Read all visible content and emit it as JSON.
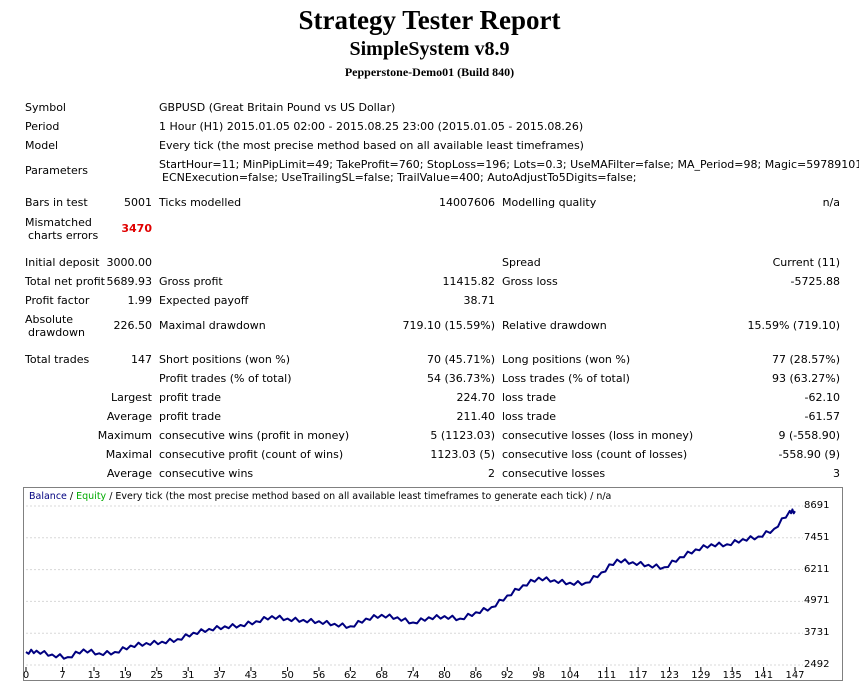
{
  "header": {
    "title": "Strategy Tester Report",
    "subtitle": "SimpleSystem v8.9",
    "broker": "Pepperstone-Demo01 (Build 840)"
  },
  "info": {
    "symbol_label": "Symbol",
    "symbol_value": "GBPUSD (Great Britain Pound vs US Dollar)",
    "period_label": "Period",
    "period_value": "1 Hour (H1) 2015.01.05 02:00 - 2015.08.25 23:00 (2015.01.05 - 2015.08.26)",
    "model_label": "Model",
    "model_value": "Every tick (the most precise method based on all available least timeframes)",
    "parameters_label": "Parameters",
    "parameters_line1": "StartHour=11; MinPipLimit=49; TakeProfit=760; StopLoss=196; Lots=0.3; UseMAFilter=false; MA_Period=98; Magic=59789101;",
    "parameters_line2": "ECNExecution=false; UseTrailingSL=false; TrailValue=400; AutoAdjustTo5Digits=false;"
  },
  "stats": {
    "bars_label": "Bars in test",
    "bars_value": "5001",
    "ticks_label": "Ticks modelled",
    "ticks_value": "14007606",
    "quality_label": "Modelling quality",
    "quality_value": "n/a",
    "mismatch_label1": "Mismatched",
    "mismatch_label2": "charts errors",
    "mismatch_value": "3470",
    "deposit_label": "Initial deposit",
    "deposit_value": "3000.00",
    "spread_label": "Spread",
    "spread_value": "Current (11)",
    "netprofit_label": "Total net profit",
    "netprofit_value": "5689.93",
    "grossprofit_label": "Gross profit",
    "grossprofit_value": "11415.82",
    "grossloss_label": "Gross loss",
    "grossloss_value": "-5725.88",
    "pf_label": "Profit factor",
    "pf_value": "1.99",
    "payoff_label": "Expected payoff",
    "payoff_value": "38.71",
    "absdd_label1": "Absolute",
    "absdd_label2": "drawdown",
    "absdd_value": "226.50",
    "maxdd_label": "Maximal drawdown",
    "maxdd_value": "719.10 (15.59%)",
    "reldd_label": "Relative drawdown",
    "reldd_value": "15.59% (719.10)",
    "trades_label": "Total trades",
    "trades_value": "147",
    "short_label": "Short positions (won %)",
    "short_value": "70 (45.71%)",
    "long_label": "Long positions (won %)",
    "long_value": "77 (28.57%)",
    "profit_trades_label": "Profit trades (% of total)",
    "profit_trades_value": "54 (36.73%)",
    "loss_trades_label": "Loss trades (% of total)",
    "loss_trades_value": "93 (63.27%)",
    "largest_label": "Largest",
    "largest_profit_label": "profit trade",
    "largest_profit_value": "224.70",
    "largest_loss_label": "loss trade",
    "largest_loss_value": "-62.10",
    "average_label": "Average",
    "average_profit_label": "profit trade",
    "average_profit_value": "211.40",
    "average_loss_label": "loss trade",
    "average_loss_value": "-61.57",
    "maximum_label": "Maximum",
    "max_wins_label": "consecutive wins (profit in money)",
    "max_wins_value": "5 (1123.03)",
    "max_losses_label": "consecutive losses (loss in money)",
    "max_losses_value": "9 (-558.90)",
    "maximal_label": "Maximal",
    "maximal_profit_label": "consecutive profit (count of wins)",
    "maximal_profit_value": "1123.03 (5)",
    "maximal_loss_label": "consecutive loss (count of losses)",
    "maximal_loss_value": "-558.90 (9)",
    "avg_consec_label": "Average",
    "avg_wins_label": "consecutive wins",
    "avg_wins_value": "2",
    "avg_losses_label": "consecutive losses",
    "avg_losses_value": "3"
  },
  "chart_data": {
    "type": "line",
    "legend": {
      "balance": "Balance",
      "sep": " / ",
      "equity": "Equity",
      "rest": " / Every tick (the most precise method based on all available least timeframes to generate each tick)  / n/a"
    },
    "colors": {
      "balance": "#000080",
      "equity": "#00aa00",
      "grid": "#d8d8d8",
      "frame": "#808080"
    },
    "x_ticks": [
      0,
      7,
      13,
      19,
      25,
      31,
      37,
      43,
      50,
      56,
      62,
      68,
      74,
      80,
      86,
      92,
      98,
      104,
      111,
      117,
      123,
      129,
      135,
      141,
      147
    ],
    "y_ticks": [
      8691,
      7451,
      6211,
      4971,
      3731,
      2492
    ],
    "xlim": [
      0,
      147
    ],
    "ylim": [
      2492,
      8691
    ],
    "series": [
      {
        "name": "Balance",
        "x": [
          0,
          2,
          5,
          8,
          11,
          14,
          17,
          20,
          23,
          26,
          29,
          32,
          35,
          38,
          41,
          44,
          47,
          50,
          53,
          56,
          59,
          62,
          65,
          68,
          71,
          74,
          77,
          80,
          83,
          86,
          89,
          92,
          95,
          98,
          101,
          104,
          107,
          110,
          113,
          116,
          119,
          122,
          125,
          128,
          131,
          134,
          137,
          140,
          143,
          146,
          147
        ],
        "y": [
          3000,
          3050,
          2900,
          2800,
          3100,
          2950,
          3000,
          3250,
          3350,
          3400,
          3500,
          3750,
          3900,
          4000,
          4050,
          4200,
          4400,
          4300,
          4250,
          4200,
          4100,
          4000,
          4300,
          4450,
          4350,
          4150,
          4350,
          4400,
          4300,
          4550,
          4750,
          5200,
          5600,
          5900,
          5800,
          5700,
          5700,
          6100,
          6600,
          6500,
          6400,
          6300,
          6700,
          7000,
          7200,
          7200,
          7400,
          7500,
          7800,
          8500,
          8490
        ]
      }
    ]
  }
}
